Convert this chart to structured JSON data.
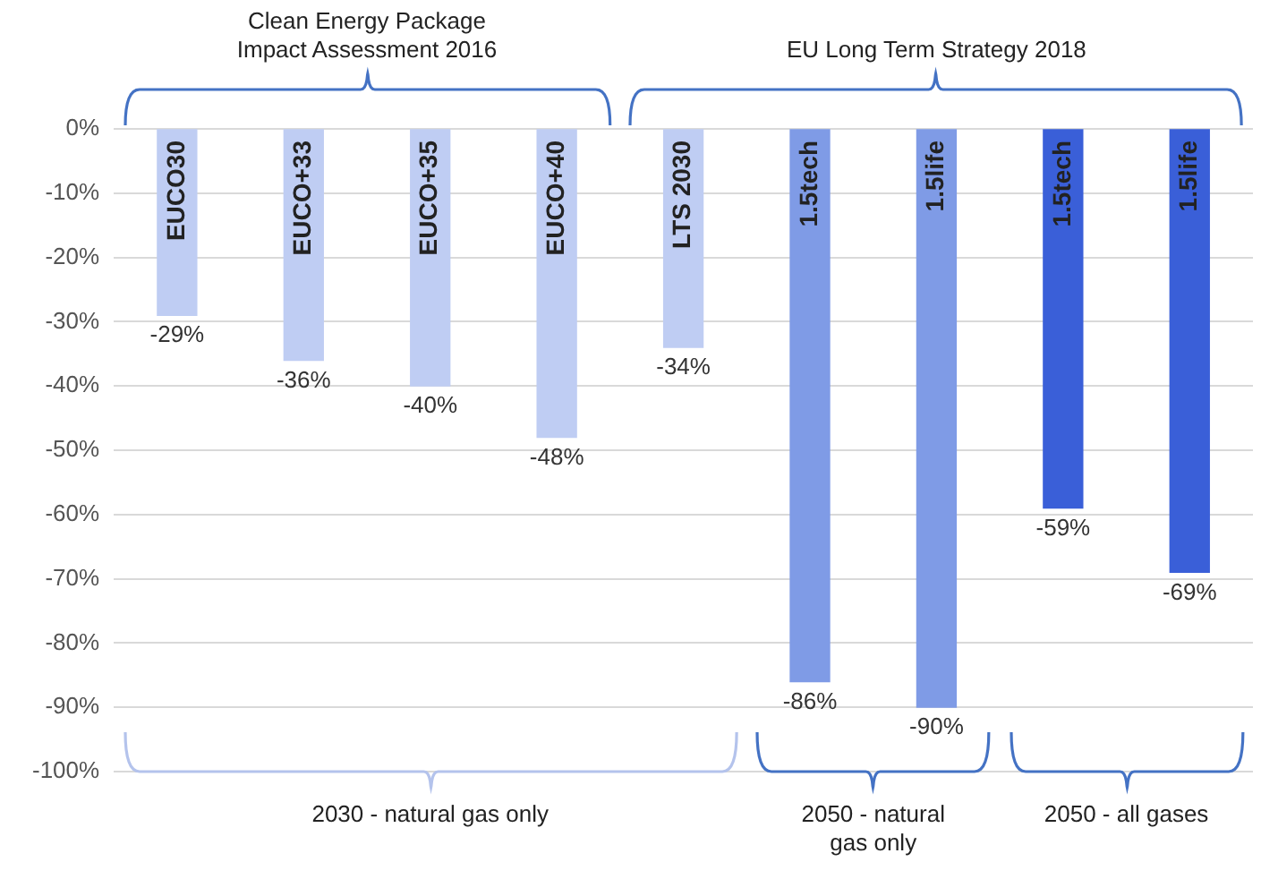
{
  "chart_data": {
    "type": "bar",
    "categories": [
      "EUCO30",
      "EUCO+33",
      "EUCO+35",
      "EUCO+40",
      "LTS 2030",
      "1.5tech",
      "1.5life",
      "1.5tech",
      "1.5life"
    ],
    "values": [
      -29,
      -36,
      -40,
      -48,
      -34,
      -86,
      -90,
      -59,
      -69
    ],
    "colors": [
      "#bfcdf3",
      "#bfcdf3",
      "#bfcdf3",
      "#bfcdf3",
      "#bfcdf3",
      "#7f9be6",
      "#7f9be6",
      "#3a5fd8",
      "#3a5fd8"
    ],
    "value_labels": [
      "-29%",
      "-36%",
      "-40%",
      "-48%",
      "-34%",
      "-86%",
      "-90%",
      "-59%",
      "-69%"
    ],
    "ylim": [
      -100,
      0
    ],
    "yticks": [
      {
        "value": 0,
        "label": "0%"
      },
      {
        "value": -10,
        "label": "-10%"
      },
      {
        "value": -20,
        "label": "-20%"
      },
      {
        "value": -30,
        "label": "-30%"
      },
      {
        "value": -40,
        "label": "-40%"
      },
      {
        "value": -50,
        "label": "-50%"
      },
      {
        "value": -60,
        "label": "-60%"
      },
      {
        "value": -70,
        "label": "-70%"
      },
      {
        "value": -80,
        "label": "-80%"
      },
      {
        "value": -90,
        "label": "-90%"
      },
      {
        "value": -100,
        "label": "-100%"
      }
    ],
    "grid": "y",
    "legend": false,
    "annotations": [
      "Clean Energy Package\nImpact Assessment 2016",
      "EU Long Term Strategy 2018",
      "2030 - natural gas only",
      "2050 - natural\ngas only",
      "2050 - all gases"
    ]
  }
}
